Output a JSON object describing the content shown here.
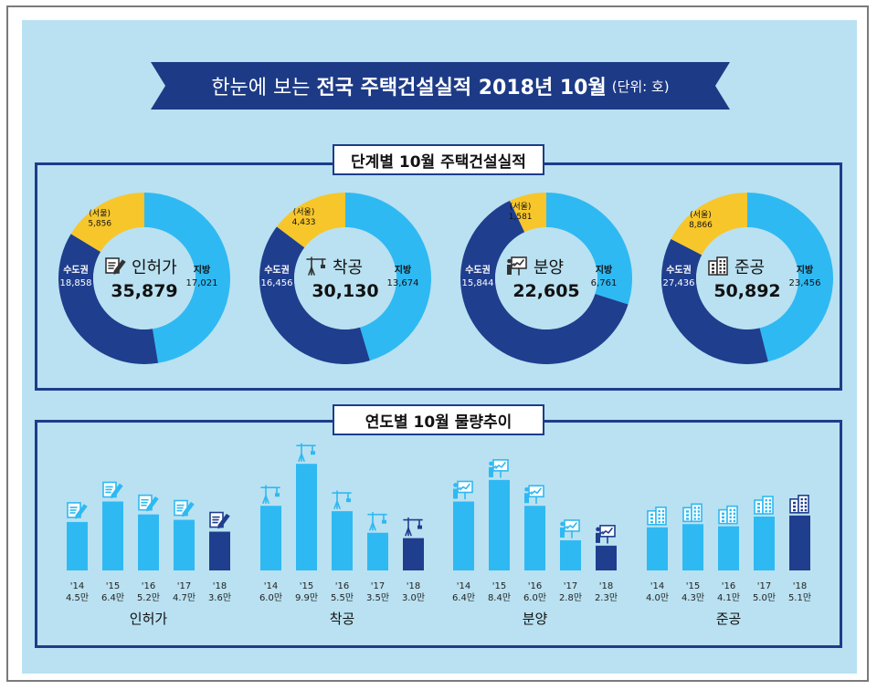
{
  "banner": {
    "pre": "한눈에 보는 ",
    "main": "전국 주택건설실적 2018년 10월",
    "unit": "(단위: 호)"
  },
  "section1": {
    "title": "단계별 10월 주택건설실적"
  },
  "section2": {
    "title": "연도별 10월 물량추이"
  },
  "colors": {
    "capital": "#1f3e8e",
    "region": "#2fb9f2",
    "seoul": "#f7c62b",
    "bar_light": "#2fb9f2",
    "bar_dark": "#1f3e8e",
    "panel": "#b9e1f1"
  },
  "chart_data": [
    {
      "type": "pie",
      "title": "단계별 10월 주택건설실적",
      "charts": [
        {
          "name": "인허가",
          "total": "35,879",
          "icon": "document-pen-icon",
          "slices": [
            {
              "label": "지방",
              "value": 17021,
              "text": "17,021"
            },
            {
              "label": "수도권",
              "value": 18858,
              "text": "18,858"
            }
          ],
          "seoul": {
            "label": "(서울)",
            "value": 5856,
            "text": "5,856"
          }
        },
        {
          "name": "착공",
          "total": "30,130",
          "icon": "crane-icon",
          "slices": [
            {
              "label": "지방",
              "value": 13674,
              "text": "13,674"
            },
            {
              "label": "수도권",
              "value": 16456,
              "text": "16,456"
            }
          ],
          "seoul": {
            "label": "(서울)",
            "value": 4433,
            "text": "4,433"
          }
        },
        {
          "name": "분양",
          "total": "22,605",
          "icon": "presentation-icon",
          "slices": [
            {
              "label": "지방",
              "value": 6761,
              "text": "6,761"
            },
            {
              "label": "수도권",
              "value": 15844,
              "text": "15,844"
            }
          ],
          "seoul": {
            "label": "(서울)",
            "value": 1581,
            "text": "1,581"
          }
        },
        {
          "name": "준공",
          "total": "50,892",
          "icon": "buildings-icon",
          "slices": [
            {
              "label": "지방",
              "value": 23456,
              "text": "23,456"
            },
            {
              "label": "수도권",
              "value": 27436,
              "text": "27,436"
            }
          ],
          "seoul": {
            "label": "(서울)",
            "value": 8866,
            "text": "8,866"
          }
        }
      ]
    },
    {
      "type": "bar",
      "title": "연도별 10월 물량추이",
      "unit": "만",
      "ylim": [
        0,
        10
      ],
      "groups": [
        {
          "name": "인허가",
          "icon": "document-pen-icon",
          "categories": [
            "'14",
            "'15",
            "'16",
            "'17",
            "'18"
          ],
          "values": [
            4.5,
            6.4,
            5.2,
            4.7,
            3.6
          ],
          "labels": [
            "4.5만",
            "6.4만",
            "5.2만",
            "4.7만",
            "3.6만"
          ]
        },
        {
          "name": "착공",
          "icon": "crane-icon",
          "categories": [
            "'14",
            "'15",
            "'16",
            "'17",
            "'18"
          ],
          "values": [
            6.0,
            9.9,
            5.5,
            3.5,
            3.0
          ],
          "labels": [
            "6.0만",
            "9.9만",
            "5.5만",
            "3.5만",
            "3.0만"
          ]
        },
        {
          "name": "분양",
          "icon": "presentation-icon",
          "categories": [
            "'14",
            "'15",
            "'16",
            "'17",
            "'18"
          ],
          "values": [
            6.4,
            8.4,
            6.0,
            2.8,
            2.3
          ],
          "labels": [
            "6.4만",
            "8.4만",
            "6.0만",
            "2.8만",
            "2.3만"
          ]
        },
        {
          "name": "준공",
          "icon": "buildings-icon",
          "categories": [
            "'14",
            "'15",
            "'16",
            "'17",
            "'18"
          ],
          "values": [
            4.0,
            4.3,
            4.1,
            5.0,
            5.1
          ],
          "labels": [
            "4.0만",
            "4.3만",
            "4.1만",
            "5.0만",
            "5.1만"
          ]
        }
      ]
    }
  ]
}
